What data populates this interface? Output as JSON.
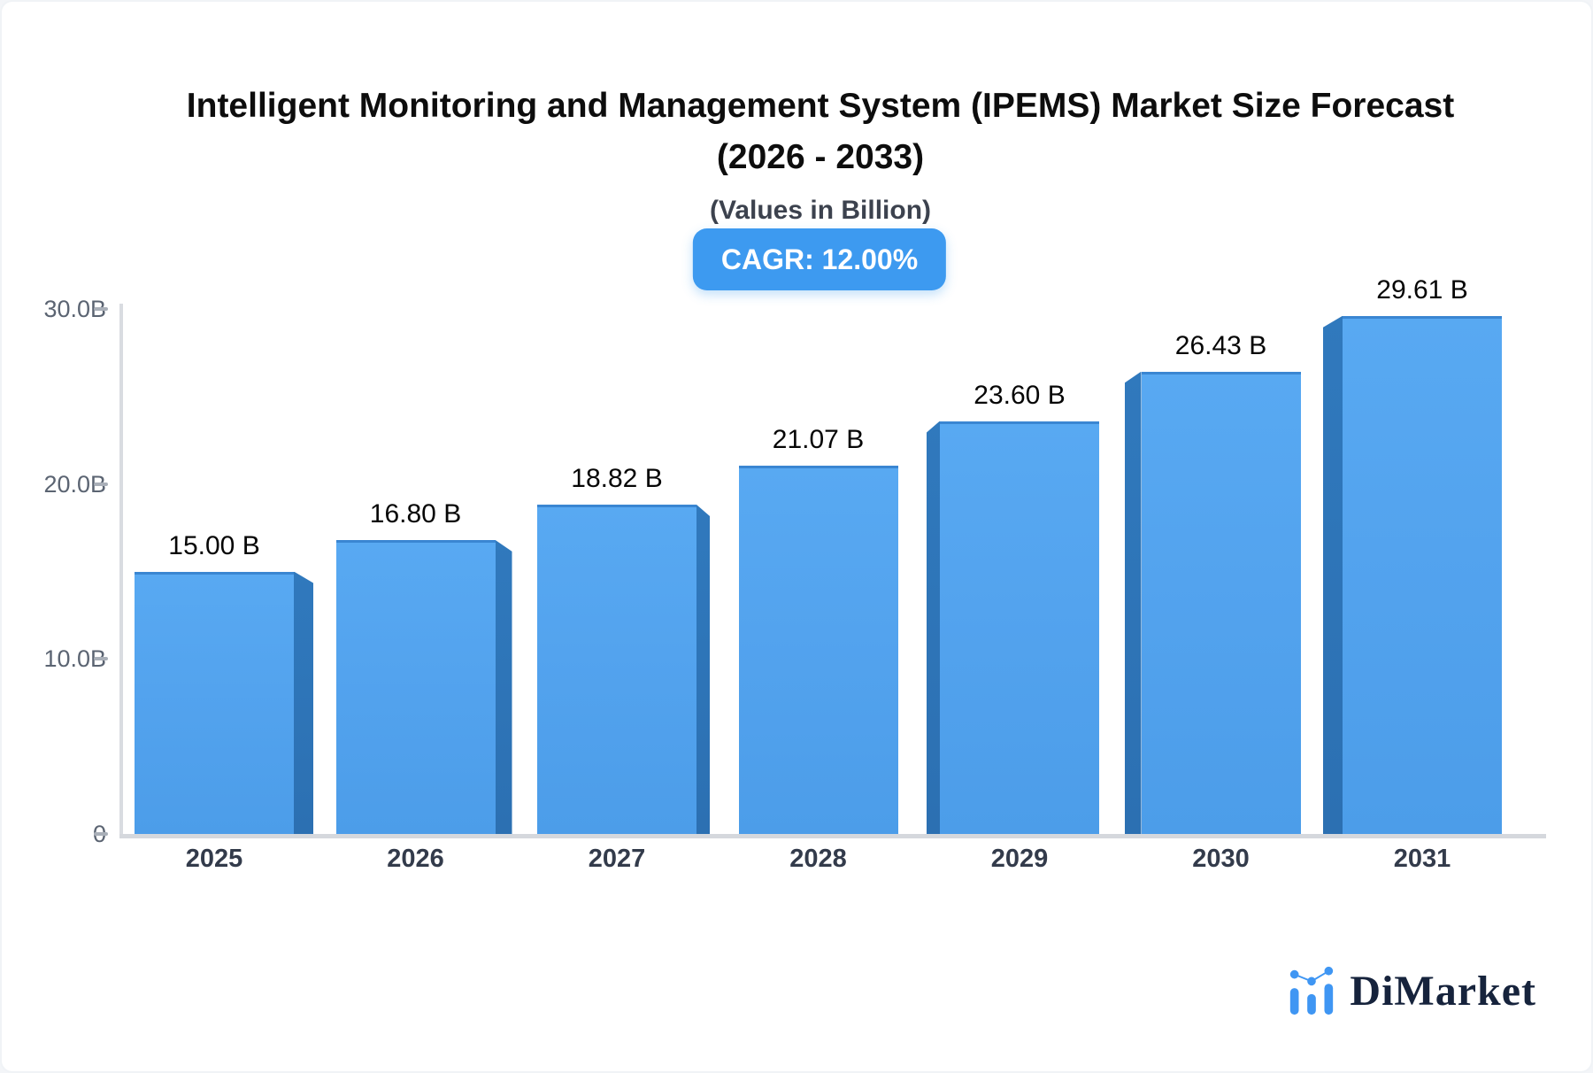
{
  "header": {
    "title_line1": "Intelligent Monitoring and Management System (IPEMS) Market Size Forecast",
    "title_line2": "(2026 - 2033)",
    "subtitle": "(Values in Billion)",
    "cagr_badge": "CAGR: 12.00%"
  },
  "chart_data": {
    "type": "bar",
    "categories": [
      "2025",
      "2026",
      "2027",
      "2028",
      "2029",
      "2030",
      "2031"
    ],
    "values": [
      15.0,
      16.8,
      18.82,
      21.07,
      23.6,
      26.43,
      29.61
    ],
    "bar_labels": [
      "15.00 B",
      "16.80 B",
      "18.82 B",
      "21.07 B",
      "23.60 B",
      "26.43 B",
      "29.61 B"
    ],
    "title": "Intelligent Monitoring and Management System (IPEMS) Market Size Forecast (2026 - 2033)",
    "xlabel": "",
    "ylabel": "",
    "y_ticks": [
      {
        "label": "30.0B",
        "value": 30
      },
      {
        "label": "20.0B",
        "value": 20
      },
      {
        "label": "10.0B",
        "value": 10
      },
      {
        "label": "0",
        "value": 0
      }
    ],
    "ylim": [
      0,
      30
    ],
    "grid": false,
    "legend": false,
    "cagr_percent": "12.00%",
    "bar_face_color": "#53a3ee",
    "bar_side_color": "#2e74b8",
    "bar_top_edge_color": "#3a86d2",
    "accent_color": "#3d9af0"
  },
  "footer": {
    "logo_text": "DiMarket",
    "logo_icon": "bar-chart-logo-icon",
    "logo_color": "#3f96f3",
    "logo_text_color": "#16233c"
  }
}
